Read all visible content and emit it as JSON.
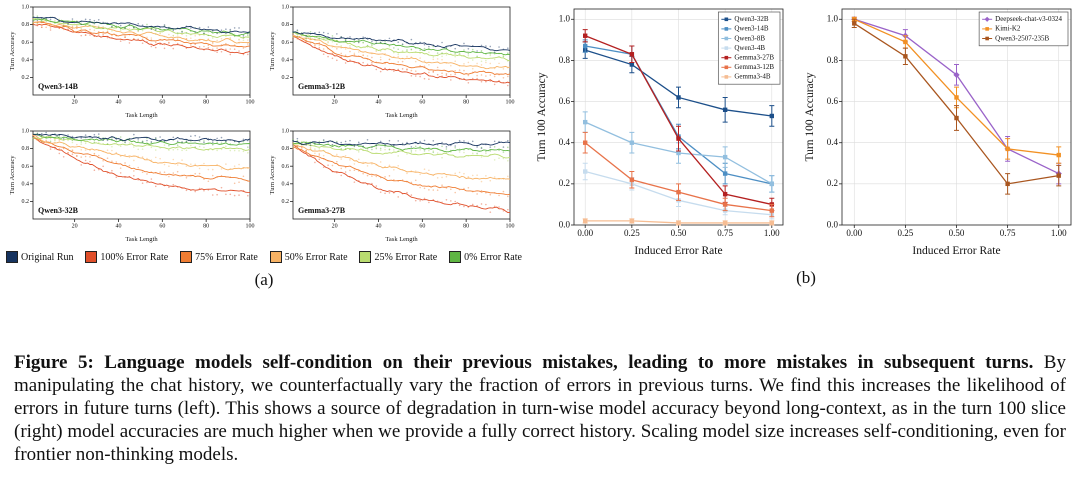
{
  "panel_labels": {
    "a": "(a)",
    "b": "(b)"
  },
  "caption": {
    "bold": "Figure 5: Language models self-condition on their previous mistakes, leading to more mistakes in subsequent turns.",
    "rest": " By manipulating the chat history, we counterfactually vary the fraction of errors in previous turns. We find this increases the likelihood of errors in future turns (left). This shows a source of degradation in turn-wise model accuracy beyond long-context, as in the turn 100 slice (right) model accuracies are much higher when we provide a fully correct history. Scaling model size increases self-conditioning, even for frontier non-thinking models."
  },
  "figure_a_legend": [
    {
      "label": "Original Run",
      "color": "#16335f"
    },
    {
      "label": "100% Error Rate",
      "color": "#e04f2a"
    },
    {
      "label": "75% Error Rate",
      "color": "#ef7d33"
    },
    {
      "label": "50% Error Rate",
      "color": "#f7b264"
    },
    {
      "label": "25% Error Rate",
      "color": "#b9db70"
    },
    {
      "label": "0% Error Rate",
      "color": "#5fb643"
    }
  ],
  "chart_data": [
    {
      "id": "qwen3-14b",
      "panel": "a",
      "type": "line",
      "title": "Qwen3-14B",
      "xlabel": "Task Length",
      "ylabel": "Turn Accuracy",
      "xlim": [
        1,
        100
      ],
      "ylim": [
        0,
        1.0
      ],
      "xtick_vals": [
        20,
        40,
        60,
        80,
        100
      ],
      "xtick_labels": [
        "20",
        "40",
        "60",
        "80",
        "100"
      ],
      "ytick_vals": [
        0.2,
        0.4,
        0.6,
        0.8,
        1.0
      ],
      "ytick_labels": [
        "0.2",
        "0.4",
        "0.6",
        "0.8",
        "1.0"
      ],
      "x_anchors": [
        1,
        20,
        40,
        60,
        80,
        100
      ],
      "noise": 0.022,
      "scatter_noise": 0.09,
      "series": [
        {
          "name": "100% Error Rate",
          "color": "#e04f2a",
          "values": [
            0.82,
            0.72,
            0.64,
            0.57,
            0.52,
            0.48
          ]
        },
        {
          "name": "75% Error Rate",
          "color": "#ef7d33",
          "values": [
            0.83,
            0.74,
            0.68,
            0.62,
            0.58,
            0.54
          ]
        },
        {
          "name": "50% Error Rate",
          "color": "#f7b264",
          "values": [
            0.84,
            0.77,
            0.72,
            0.67,
            0.63,
            0.6
          ]
        },
        {
          "name": "25% Error Rate",
          "color": "#b9db70",
          "values": [
            0.85,
            0.8,
            0.76,
            0.72,
            0.68,
            0.66
          ]
        },
        {
          "name": "0% Error Rate",
          "color": "#5fb643",
          "values": [
            0.86,
            0.82,
            0.79,
            0.76,
            0.72,
            0.69
          ]
        },
        {
          "name": "Original Run",
          "color": "#16335f",
          "values": [
            0.88,
            0.84,
            0.8,
            0.77,
            0.74,
            0.71
          ]
        }
      ]
    },
    {
      "id": "gemma3-12b",
      "panel": "a",
      "type": "line",
      "title": "Gemma3-12B",
      "xlabel": "Task Length",
      "ylabel": "Turn Accuracy",
      "xlim": [
        1,
        100
      ],
      "ylim": [
        0,
        1.0
      ],
      "xtick_vals": [
        20,
        40,
        60,
        80,
        100
      ],
      "xtick_labels": [
        "20",
        "40",
        "60",
        "80",
        "100"
      ],
      "ytick_vals": [
        0.2,
        0.4,
        0.6,
        0.8,
        1.0
      ],
      "ytick_labels": [
        "0.2",
        "0.4",
        "0.6",
        "0.8",
        "1.0"
      ],
      "x_anchors": [
        1,
        20,
        40,
        60,
        80,
        100
      ],
      "noise": 0.022,
      "scatter_noise": 0.09,
      "series": [
        {
          "name": "100% Error Rate",
          "color": "#e04f2a",
          "values": [
            0.67,
            0.44,
            0.31,
            0.23,
            0.18,
            0.15
          ]
        },
        {
          "name": "75% Error Rate",
          "color": "#ef7d33",
          "values": [
            0.68,
            0.5,
            0.38,
            0.3,
            0.26,
            0.23
          ]
        },
        {
          "name": "50% Error Rate",
          "color": "#f7b264",
          "values": [
            0.69,
            0.56,
            0.46,
            0.39,
            0.34,
            0.31
          ]
        },
        {
          "name": "25% Error Rate",
          "color": "#b9db70",
          "values": [
            0.7,
            0.61,
            0.53,
            0.47,
            0.43,
            0.4
          ]
        },
        {
          "name": "0% Error Rate",
          "color": "#5fb643",
          "values": [
            0.71,
            0.64,
            0.58,
            0.53,
            0.49,
            0.46
          ]
        },
        {
          "name": "Original Run",
          "color": "#16335f",
          "values": [
            0.72,
            0.67,
            0.62,
            0.58,
            0.55,
            0.52
          ]
        }
      ]
    },
    {
      "id": "qwen3-32b",
      "panel": "a",
      "type": "line",
      "title": "Qwen3-32B",
      "xlabel": "Task Length",
      "ylabel": "Turn Accuracy",
      "xlim": [
        1,
        100
      ],
      "ylim": [
        0,
        1.0
      ],
      "xtick_vals": [
        20,
        40,
        60,
        80,
        100
      ],
      "xtick_labels": [
        "20",
        "40",
        "60",
        "80",
        "100"
      ],
      "ytick_vals": [
        0.2,
        0.4,
        0.6,
        0.8,
        1.0
      ],
      "ytick_labels": [
        "0.2",
        "0.4",
        "0.6",
        "0.8",
        "1.0"
      ],
      "x_anchors": [
        1,
        20,
        40,
        60,
        80,
        100
      ],
      "noise": 0.022,
      "scatter_noise": 0.09,
      "series": [
        {
          "name": "100% Error Rate",
          "color": "#e04f2a",
          "values": [
            0.92,
            0.68,
            0.5,
            0.38,
            0.32,
            0.3
          ]
        },
        {
          "name": "75% Error Rate",
          "color": "#ef7d33",
          "values": [
            0.92,
            0.76,
            0.62,
            0.52,
            0.47,
            0.44
          ]
        },
        {
          "name": "50% Error Rate",
          "color": "#f7b264",
          "values": [
            0.93,
            0.82,
            0.72,
            0.65,
            0.6,
            0.57
          ]
        },
        {
          "name": "25% Error Rate",
          "color": "#b9db70",
          "values": [
            0.93,
            0.89,
            0.85,
            0.82,
            0.8,
            0.79
          ]
        },
        {
          "name": "0% Error Rate",
          "color": "#5fb643",
          "values": [
            0.94,
            0.91,
            0.89,
            0.87,
            0.86,
            0.85
          ]
        },
        {
          "name": "Original Run",
          "color": "#16335f",
          "values": [
            0.95,
            0.93,
            0.92,
            0.91,
            0.9,
            0.9
          ]
        }
      ]
    },
    {
      "id": "gemma3-27b",
      "panel": "a",
      "type": "line",
      "title": "Gemma3-27B",
      "xlabel": "Task Length",
      "ylabel": "Turn Accuracy",
      "xlim": [
        1,
        100
      ],
      "ylim": [
        0,
        1.0
      ],
      "xtick_vals": [
        20,
        40,
        60,
        80,
        100
      ],
      "xtick_labels": [
        "20",
        "40",
        "60",
        "80",
        "100"
      ],
      "ytick_vals": [
        0.2,
        0.4,
        0.6,
        0.8,
        1.0
      ],
      "ytick_labels": [
        "0.2",
        "0.4",
        "0.6",
        "0.8",
        "1.0"
      ],
      "x_anchors": [
        1,
        20,
        40,
        60,
        80,
        100
      ],
      "noise": 0.022,
      "scatter_noise": 0.09,
      "series": [
        {
          "name": "100% Error Rate",
          "color": "#e04f2a",
          "values": [
            0.83,
            0.55,
            0.35,
            0.22,
            0.15,
            0.1
          ]
        },
        {
          "name": "75% Error Rate",
          "color": "#ef7d33",
          "values": [
            0.83,
            0.64,
            0.48,
            0.38,
            0.32,
            0.28
          ]
        },
        {
          "name": "50% Error Rate",
          "color": "#f7b264",
          "values": [
            0.84,
            0.72,
            0.61,
            0.53,
            0.48,
            0.45
          ]
        },
        {
          "name": "25% Error Rate",
          "color": "#b9db70",
          "values": [
            0.85,
            0.81,
            0.77,
            0.74,
            0.72,
            0.7
          ]
        },
        {
          "name": "0% Error Rate",
          "color": "#5fb643",
          "values": [
            0.86,
            0.84,
            0.82,
            0.8,
            0.79,
            0.78
          ]
        },
        {
          "name": "Original Run",
          "color": "#16335f",
          "values": [
            0.87,
            0.86,
            0.86,
            0.85,
            0.85,
            0.85
          ]
        }
      ]
    },
    {
      "id": "turn100-open-models",
      "panel": "b",
      "type": "line-markers",
      "xlabel": "Induced Error Rate",
      "ylabel": "Turn 100 Accuracy",
      "xlim": [
        -0.06,
        1.06
      ],
      "ylim": [
        0,
        1.05
      ],
      "xtick_vals": [
        0,
        0.25,
        0.5,
        0.75,
        1.0
      ],
      "xtick_labels": [
        "0.00",
        "0.25",
        "0.50",
        "0.75",
        "1.00"
      ],
      "ytick_vals": [
        0,
        0.2,
        0.4,
        0.6,
        0.8,
        1.0
      ],
      "ytick_labels": [
        "0.0",
        "0.2",
        "0.4",
        "0.6",
        "0.8",
        "1.0"
      ],
      "x": [
        0,
        0.25,
        0.5,
        0.75,
        1.0
      ],
      "legend": true,
      "series": [
        {
          "name": "Qwen3-32B",
          "color": "#1c4f8a",
          "marker": "s",
          "values": [
            0.85,
            0.78,
            0.62,
            0.56,
            0.53
          ],
          "err": [
            0.04,
            0.04,
            0.05,
            0.06,
            0.05
          ]
        },
        {
          "name": "Qwen3-14B",
          "color": "#4d8fc4",
          "marker": "s",
          "values": [
            0.87,
            0.83,
            0.43,
            0.25,
            0.2
          ],
          "err": [
            0.03,
            0.04,
            0.06,
            0.05,
            0.04
          ]
        },
        {
          "name": "Qwen3-8B",
          "color": "#92bfdf",
          "marker": "s",
          "values": [
            0.5,
            0.4,
            0.35,
            0.33,
            0.2
          ],
          "err": [
            0.05,
            0.05,
            0.05,
            0.05,
            0.04
          ]
        },
        {
          "name": "Qwen3-4B",
          "color": "#c6dcee",
          "marker": "s",
          "values": [
            0.26,
            0.2,
            0.12,
            0.07,
            0.05
          ],
          "err": [
            0.04,
            0.03,
            0.03,
            0.02,
            0.02
          ]
        },
        {
          "name": "Gemma3-27B",
          "color": "#b42020",
          "marker": "s",
          "values": [
            0.92,
            0.83,
            0.42,
            0.15,
            0.1
          ],
          "err": [
            0.03,
            0.04,
            0.06,
            0.04,
            0.03
          ]
        },
        {
          "name": "Gemma3-12B",
          "color": "#e8734a",
          "marker": "s",
          "values": [
            0.4,
            0.22,
            0.16,
            0.1,
            0.07
          ],
          "err": [
            0.05,
            0.04,
            0.04,
            0.03,
            0.03
          ]
        },
        {
          "name": "Gemma3-4B",
          "color": "#f6bd93",
          "marker": "s",
          "values": [
            0.02,
            0.02,
            0.01,
            0.01,
            0.01
          ],
          "err": [
            0.01,
            0.01,
            0.01,
            0.01,
            0.01
          ]
        }
      ]
    },
    {
      "id": "turn100-frontier-models",
      "panel": "b",
      "type": "line-markers",
      "xlabel": "Induced Error Rate",
      "ylabel": "Turn 100 Accuracy",
      "xlim": [
        -0.06,
        1.06
      ],
      "ylim": [
        0,
        1.05
      ],
      "xtick_vals": [
        0,
        0.25,
        0.5,
        0.75,
        1.0
      ],
      "xtick_labels": [
        "0.00",
        "0.25",
        "0.50",
        "0.75",
        "1.00"
      ],
      "ytick_vals": [
        0,
        0.2,
        0.4,
        0.6,
        0.8,
        1.0
      ],
      "ytick_labels": [
        "0.0",
        "0.2",
        "0.4",
        "0.6",
        "0.8",
        "1.0"
      ],
      "x": [
        0,
        0.25,
        0.5,
        0.75,
        1.0
      ],
      "legend": true,
      "series": [
        {
          "name": "Deepseek-chat-v3-0324",
          "color": "#9a63c9",
          "marker": "D",
          "values": [
            1.0,
            0.92,
            0.73,
            0.37,
            0.25
          ],
          "err": [
            0.01,
            0.03,
            0.05,
            0.06,
            0.05
          ]
        },
        {
          "name": "Kimi-K2",
          "color": "#f29124",
          "marker": "s",
          "values": [
            1.0,
            0.89,
            0.62,
            0.37,
            0.34
          ],
          "err": [
            0.01,
            0.03,
            0.05,
            0.05,
            0.04
          ]
        },
        {
          "name": "Qwen3-2507-235B",
          "color": "#a9561f",
          "marker": "s",
          "values": [
            0.98,
            0.82,
            0.52,
            0.2,
            0.24
          ],
          "err": [
            0.02,
            0.04,
            0.06,
            0.05,
            0.05
          ]
        }
      ]
    }
  ]
}
